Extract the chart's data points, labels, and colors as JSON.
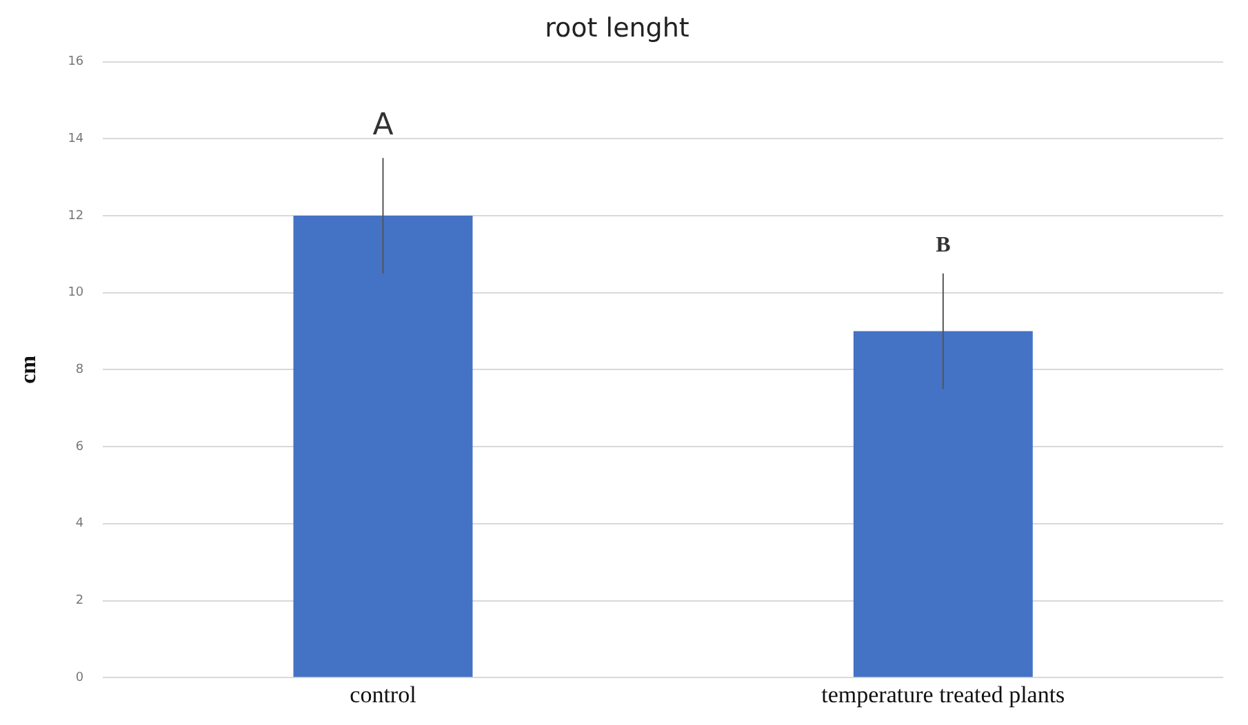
{
  "chart_data": {
    "type": "bar",
    "title": "root lenght",
    "ylabel": "cm",
    "categories": [
      "control",
      "temperature treated plants"
    ],
    "values": [
      12,
      9
    ],
    "color": "#4472c4",
    "errors": [
      1.5,
      1.5
    ],
    "ylim": [
      0,
      16
    ],
    "yticks": [
      0,
      2,
      4,
      6,
      8,
      10,
      12,
      14,
      16
    ],
    "grid": "y",
    "legend": false,
    "annotations": [
      "A",
      "B"
    ]
  }
}
